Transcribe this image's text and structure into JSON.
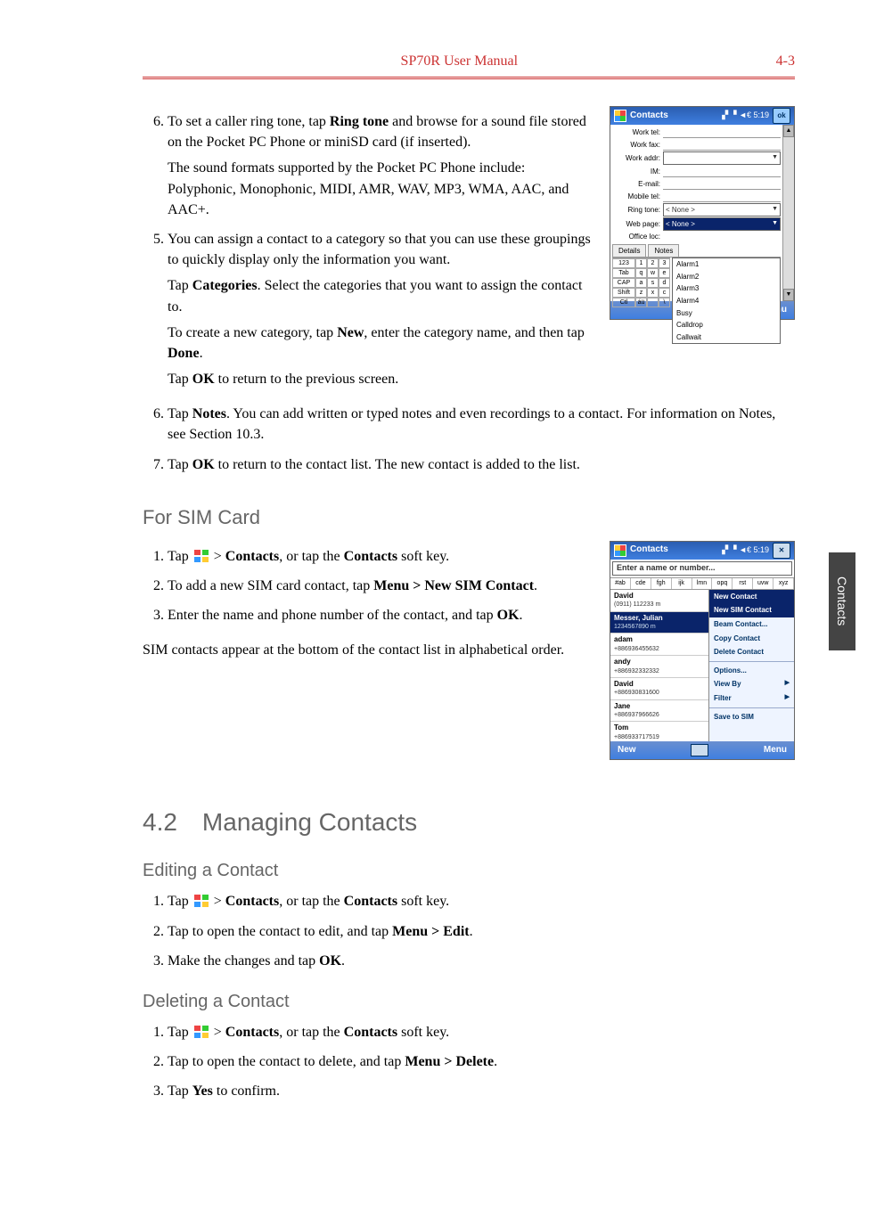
{
  "header": {
    "title": "SP70R User Manual",
    "pageno": "4-3"
  },
  "sideTab": "Contacts",
  "steps_top": [
    {
      "n": "6.",
      "paras": [
        [
          "To set a caller ring tone, tap ",
          {
            "b": "Ring tone"
          },
          " and browse for a sound file stored on the Pocket PC Phone or miniSD card (if inserted)."
        ],
        [
          "The sound formats supported by the Pocket PC Phone include: Polyphonic, Monophonic, MIDI, AMR, WAV, MP3, WMA, AAC, and AAC+."
        ]
      ]
    },
    {
      "n": "5.",
      "paras": [
        [
          "You can assign a contact to a category so that you can use these groupings to quickly display only the information you want."
        ],
        [
          "Tap ",
          {
            "b": "Categories"
          },
          ". Select the categories that you want to assign the contact to."
        ],
        [
          "To create a new category, tap ",
          {
            "b": "New"
          },
          ", enter the category name, and then tap ",
          {
            "b": "Done"
          },
          "."
        ],
        [
          "Tap ",
          {
            "b": "OK"
          },
          " to return to the previous screen."
        ]
      ]
    }
  ],
  "steps_after": [
    {
      "n": "6.",
      "paras": [
        [
          "Tap ",
          {
            "b": "Notes"
          },
          ". You can add written or typed notes and even recordings to a contact. For information on Notes, see Section 10.3."
        ]
      ]
    },
    {
      "n": "7.",
      "paras": [
        [
          "Tap ",
          {
            "b": "OK"
          },
          " to return to the contact list. The new contact is added to the list."
        ]
      ]
    }
  ],
  "h_sim": "For SIM Card",
  "steps_sim": [
    {
      "n": "1.",
      "paras": [
        [
          "Tap ",
          {
            "icon": true
          },
          " > ",
          {
            "b": "Contacts"
          },
          ", or tap the ",
          {
            "b": "Contacts"
          },
          " soft key."
        ]
      ]
    },
    {
      "n": "2.",
      "paras": [
        [
          "To add a new SIM card contact, tap ",
          {
            "b": "Menu > New SIM Contact"
          },
          "."
        ]
      ]
    },
    {
      "n": "3.",
      "paras": [
        [
          "Enter the name and phone number of the contact, and tap ",
          {
            "b": "OK"
          },
          "."
        ]
      ]
    }
  ],
  "sim_tail": "SIM contacts appear at the bottom of the contact list in alphabetical order.",
  "h_42": "4.2 Managing Contacts",
  "h_edit": "Editing a Contact",
  "steps_edit": [
    {
      "n": "1.",
      "paras": [
        [
          "Tap ",
          {
            "icon": true
          },
          " > ",
          {
            "b": "Contacts"
          },
          ", or tap the ",
          {
            "b": "Contacts"
          },
          " soft key."
        ]
      ]
    },
    {
      "n": "2.",
      "paras": [
        [
          "Tap to open the contact to edit, and tap ",
          {
            "b": "Menu > Edit"
          },
          "."
        ]
      ]
    },
    {
      "n": "3.",
      "paras": [
        [
          "Make the changes and tap ",
          {
            "b": "OK"
          },
          "."
        ]
      ]
    }
  ],
  "h_del": "Deleting a Contact",
  "steps_del": [
    {
      "n": "1.",
      "paras": [
        [
          "Tap ",
          {
            "icon": true
          },
          " > ",
          {
            "b": "Contacts"
          },
          ", or tap the ",
          {
            "b": "Contacts"
          },
          " soft key."
        ]
      ]
    },
    {
      "n": "2.",
      "paras": [
        [
          "Tap to open the contact to delete, and tap ",
          {
            "b": "Menu > Delete"
          },
          "."
        ]
      ]
    },
    {
      "n": "3.",
      "paras": [
        [
          "Tap ",
          {
            "b": "Yes"
          },
          " to confirm."
        ]
      ]
    }
  ],
  "ppc1": {
    "title": "Contacts",
    "status": "▞ ▝ ◄€ 5:19",
    "ok": "ok",
    "fields": [
      {
        "lbl": "Work tel:",
        "type": "line"
      },
      {
        "lbl": "Work fax:",
        "type": "line"
      },
      {
        "lbl": "Work addr:",
        "type": "drop",
        "val": ""
      },
      {
        "lbl": "IM:",
        "type": "line"
      },
      {
        "lbl": "E-mail:",
        "type": "line"
      },
      {
        "lbl": "Mobile tel:",
        "type": "line"
      },
      {
        "lbl": "Ring tone:",
        "type": "drop",
        "val": "< None >"
      },
      {
        "lbl": "Web page:",
        "type": "drophl",
        "val": "< None >"
      },
      {
        "lbl": "Office loc:",
        "type": "popup"
      }
    ],
    "tabs": [
      "Details",
      "Notes"
    ],
    "popup": [
      "Alarm1",
      "Alarm2",
      "Alarm3",
      "Alarm4",
      "Busy",
      "Calldrop",
      "Callwait"
    ],
    "kbd": [
      [
        "123",
        "1",
        "2",
        "3"
      ],
      [
        "Tab",
        "q",
        "w",
        "e"
      ],
      [
        "CAP",
        "a",
        "s",
        "d"
      ],
      [
        "Shift",
        "z",
        "x",
        "c"
      ],
      [
        "Ctl",
        "áü",
        " ",
        "\\"
      ]
    ],
    "bottom": {
      "l": "",
      "r": "Menu"
    }
  },
  "ppc2": {
    "title": "Contacts",
    "status": "▞ ▝ ◄€ 5:19",
    "x": "✕",
    "search": "Enter a name or number...",
    "alpha": [
      "#ab",
      "cde",
      "fgh",
      "ijk",
      "lmn",
      "opq",
      "rst",
      "uvw",
      "xyz"
    ],
    "list": [
      {
        "nm": "David",
        "ph": "(0911) 112233   m"
      },
      {
        "nm": "Messer, Julian",
        "ph": "1234567890   m",
        "sel": true
      },
      {
        "nm": "adam",
        "ph": "+886936455632"
      },
      {
        "nm": "andy",
        "ph": "+886932332332"
      },
      {
        "nm": "David",
        "ph": "+886930831600"
      },
      {
        "nm": "Jane",
        "ph": "+886937966626"
      },
      {
        "nm": "Tom",
        "ph": "+886933717519"
      }
    ],
    "menuHdr1": "New Contact",
    "menuHdr2": "New SIM Contact",
    "menu": [
      "Beam Contact...",
      "Copy Contact",
      "Delete Contact",
      "__sep__",
      "Options...",
      "View By",
      "Filter",
      "__sep__",
      "Save to SIM"
    ],
    "menuArrows": {
      "View By": true,
      "Filter": true
    },
    "bottom": {
      "l": "New",
      "r": "Menu"
    }
  }
}
